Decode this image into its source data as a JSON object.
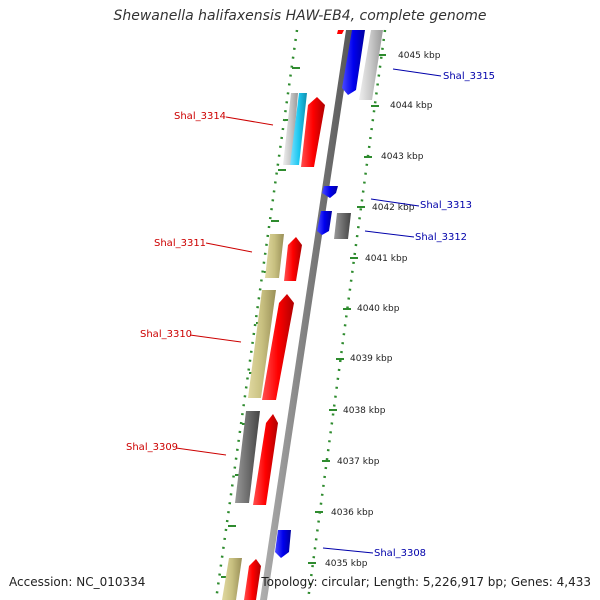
{
  "title": "Shewanella halifaxensis HAW-EB4, complete genome",
  "accession": "Accession: NC_010334",
  "topology": "Topology: circular; Length: 5,226,917 bp; Genes: 4,433",
  "ticks": [
    {
      "label": "4045 kbp"
    },
    {
      "label": "4044 kbp"
    },
    {
      "label": "4043 kbp"
    },
    {
      "label": "4042 kbp"
    },
    {
      "label": "4041 kbp"
    },
    {
      "label": "4040 kbp"
    },
    {
      "label": "4039 kbp"
    },
    {
      "label": "4038 kbp"
    },
    {
      "label": "4037 kbp"
    },
    {
      "label": "4036 kbp"
    },
    {
      "label": "4035 kbp"
    }
  ],
  "gene_labels": {
    "left": [
      "Shal_3314",
      "Shal_3311",
      "Shal_3310",
      "Shal_3309"
    ],
    "right": [
      "Shal_3315",
      "Shal_3313",
      "Shal_3312",
      "Shal_3308"
    ]
  },
  "colors": {
    "forward": "#ff0000",
    "reverse": "#0000ee",
    "label_left": "#cc0000",
    "label_right": "#0000aa",
    "backbone": "#808080",
    "tick": "#2e8b2e",
    "gray_feature": "#6e6e6e",
    "tan_feature": "#c8c080",
    "light_gray_feature": "#c8c8c8",
    "cyan_feature": "#1ec8f0"
  }
}
